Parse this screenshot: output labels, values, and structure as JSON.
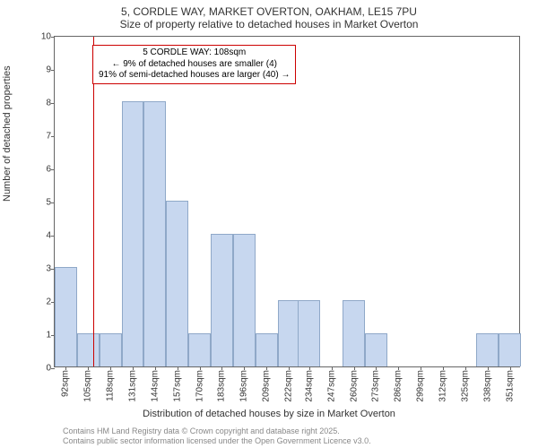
{
  "title": {
    "line1": "5, CORDLE WAY, MARKET OVERTON, OAKHAM, LE15 7PU",
    "line2": "Size of property relative to detached houses in Market Overton"
  },
  "chart": {
    "type": "histogram",
    "ylabel": "Number of detached properties",
    "xlabel": "Distribution of detached houses by size in Market Overton",
    "ylim": [
      0,
      10
    ],
    "ytick_step": 1,
    "plot_x_min": 85.5,
    "plot_x_max": 357.5,
    "xticks": [
      92,
      105,
      118,
      131,
      144,
      157,
      170,
      183,
      196,
      209,
      222,
      234,
      247,
      260,
      273,
      286,
      299,
      312,
      325,
      338,
      351
    ],
    "xtick_labels": [
      "92sqm",
      "105sqm",
      "118sqm",
      "131sqm",
      "144sqm",
      "157sqm",
      "170sqm",
      "183sqm",
      "196sqm",
      "209sqm",
      "222sqm",
      "234sqm",
      "247sqm",
      "260sqm",
      "273sqm",
      "286sqm",
      "299sqm",
      "312sqm",
      "325sqm",
      "338sqm",
      "351sqm"
    ],
    "bar_width_sqm": 13,
    "bars": [
      {
        "x": 92,
        "y": 3
      },
      {
        "x": 105,
        "y": 1
      },
      {
        "x": 118,
        "y": 1
      },
      {
        "x": 131,
        "y": 8
      },
      {
        "x": 144,
        "y": 8
      },
      {
        "x": 157,
        "y": 5
      },
      {
        "x": 170,
        "y": 1
      },
      {
        "x": 183,
        "y": 4
      },
      {
        "x": 196,
        "y": 4
      },
      {
        "x": 209,
        "y": 1
      },
      {
        "x": 222,
        "y": 2
      },
      {
        "x": 234,
        "y": 2
      },
      {
        "x": 247,
        "y": 0
      },
      {
        "x": 260,
        "y": 2
      },
      {
        "x": 273,
        "y": 1
      },
      {
        "x": 286,
        "y": 0
      },
      {
        "x": 299,
        "y": 0
      },
      {
        "x": 312,
        "y": 0
      },
      {
        "x": 325,
        "y": 0
      },
      {
        "x": 338,
        "y": 1
      },
      {
        "x": 351,
        "y": 1
      }
    ],
    "bar_fill": "#c7d7ef",
    "bar_stroke": "#8fa8c8",
    "marker_x": 108,
    "marker_color": "#cc0000",
    "annotation": {
      "line1": "5 CORDLE WAY: 108sqm",
      "line2": "← 9% of detached houses are smaller (4)",
      "line3": "91% of semi-detached houses are larger (40) →"
    },
    "background_color": "#ffffff",
    "axis_color": "#666666"
  },
  "footer": {
    "line1": "Contains HM Land Registry data © Crown copyright and database right 2025.",
    "line2": "Contains public sector information licensed under the Open Government Licence v3.0."
  }
}
